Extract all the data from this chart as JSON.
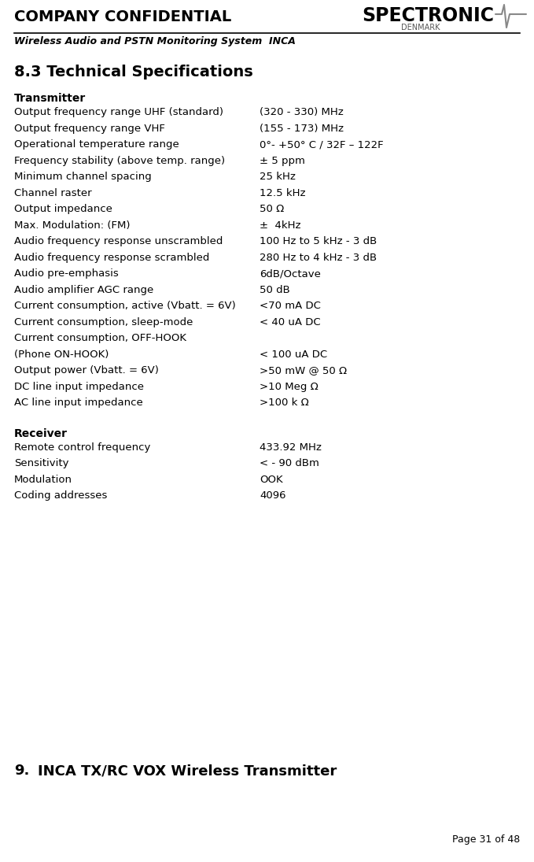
{
  "header_left": "COMPANY CONFIDENTIAL",
  "header_subtitle": "Wireless Audio and PSTN Monitoring System  INCA",
  "logo_main": "SPECTRONIC",
  "logo_sub": "DENMARK",
  "section_title": "8.3 Technical Specifications",
  "transmitter_label": "Transmitter",
  "transmitter_rows": [
    [
      "Output frequency range UHF (standard)",
      "(320 - 330) MHz"
    ],
    [
      "Output frequency range VHF",
      "(155 - 173) MHz"
    ],
    [
      "Operational temperature range",
      "0°- +50° C / 32F – 122F"
    ],
    [
      "Frequency stability (above temp. range)",
      "± 5 ppm"
    ],
    [
      "Minimum channel spacing",
      "25 kHz"
    ],
    [
      "Channel raster",
      "12.5 kHz"
    ],
    [
      "Output impedance",
      "50 Ω"
    ],
    [
      "Max. Modulation: (FM)",
      "±  4kHz"
    ],
    [
      "Audio frequency response unscrambled",
      "100 Hz to 5 kHz - 3 dB"
    ],
    [
      "Audio frequency response scrambled",
      "280 Hz to 4 kHz - 3 dB"
    ],
    [
      "Audio pre-emphasis",
      "6dB/Octave"
    ],
    [
      "Audio amplifier AGC range",
      "50 dB"
    ],
    [
      "Current consumption, active (Vbatt. = 6V)",
      "<70 mA DC"
    ],
    [
      "Current consumption, sleep-mode",
      "< 40 uA DC"
    ],
    [
      "Current consumption, OFF-HOOK\n(Phone ON-HOOK)",
      "< 100 uA DC"
    ],
    [
      "Output power (Vbatt. = 6V)",
      ">50 mW @ 50 Ω"
    ],
    [
      "DC line input impedance",
      ">10 Meg Ω"
    ],
    [
      "AC line input impedance",
      ">100 k Ω"
    ]
  ],
  "receiver_label": "Receiver",
  "receiver_rows": [
    [
      "Remote control frequency",
      "433.92 MHz"
    ],
    [
      "Sensitivity",
      "< - 90 dBm"
    ],
    [
      "Modulation",
      "OOK"
    ],
    [
      "Coding addresses",
      "4096"
    ]
  ],
  "section9_number": "9.",
  "section9_title": "INCA TX/RC VOX Wireless Transmitter",
  "page_label": "Page 31 of 48",
  "bg_color": "#ffffff",
  "text_color": "#000000",
  "header_line_color": "#000000"
}
